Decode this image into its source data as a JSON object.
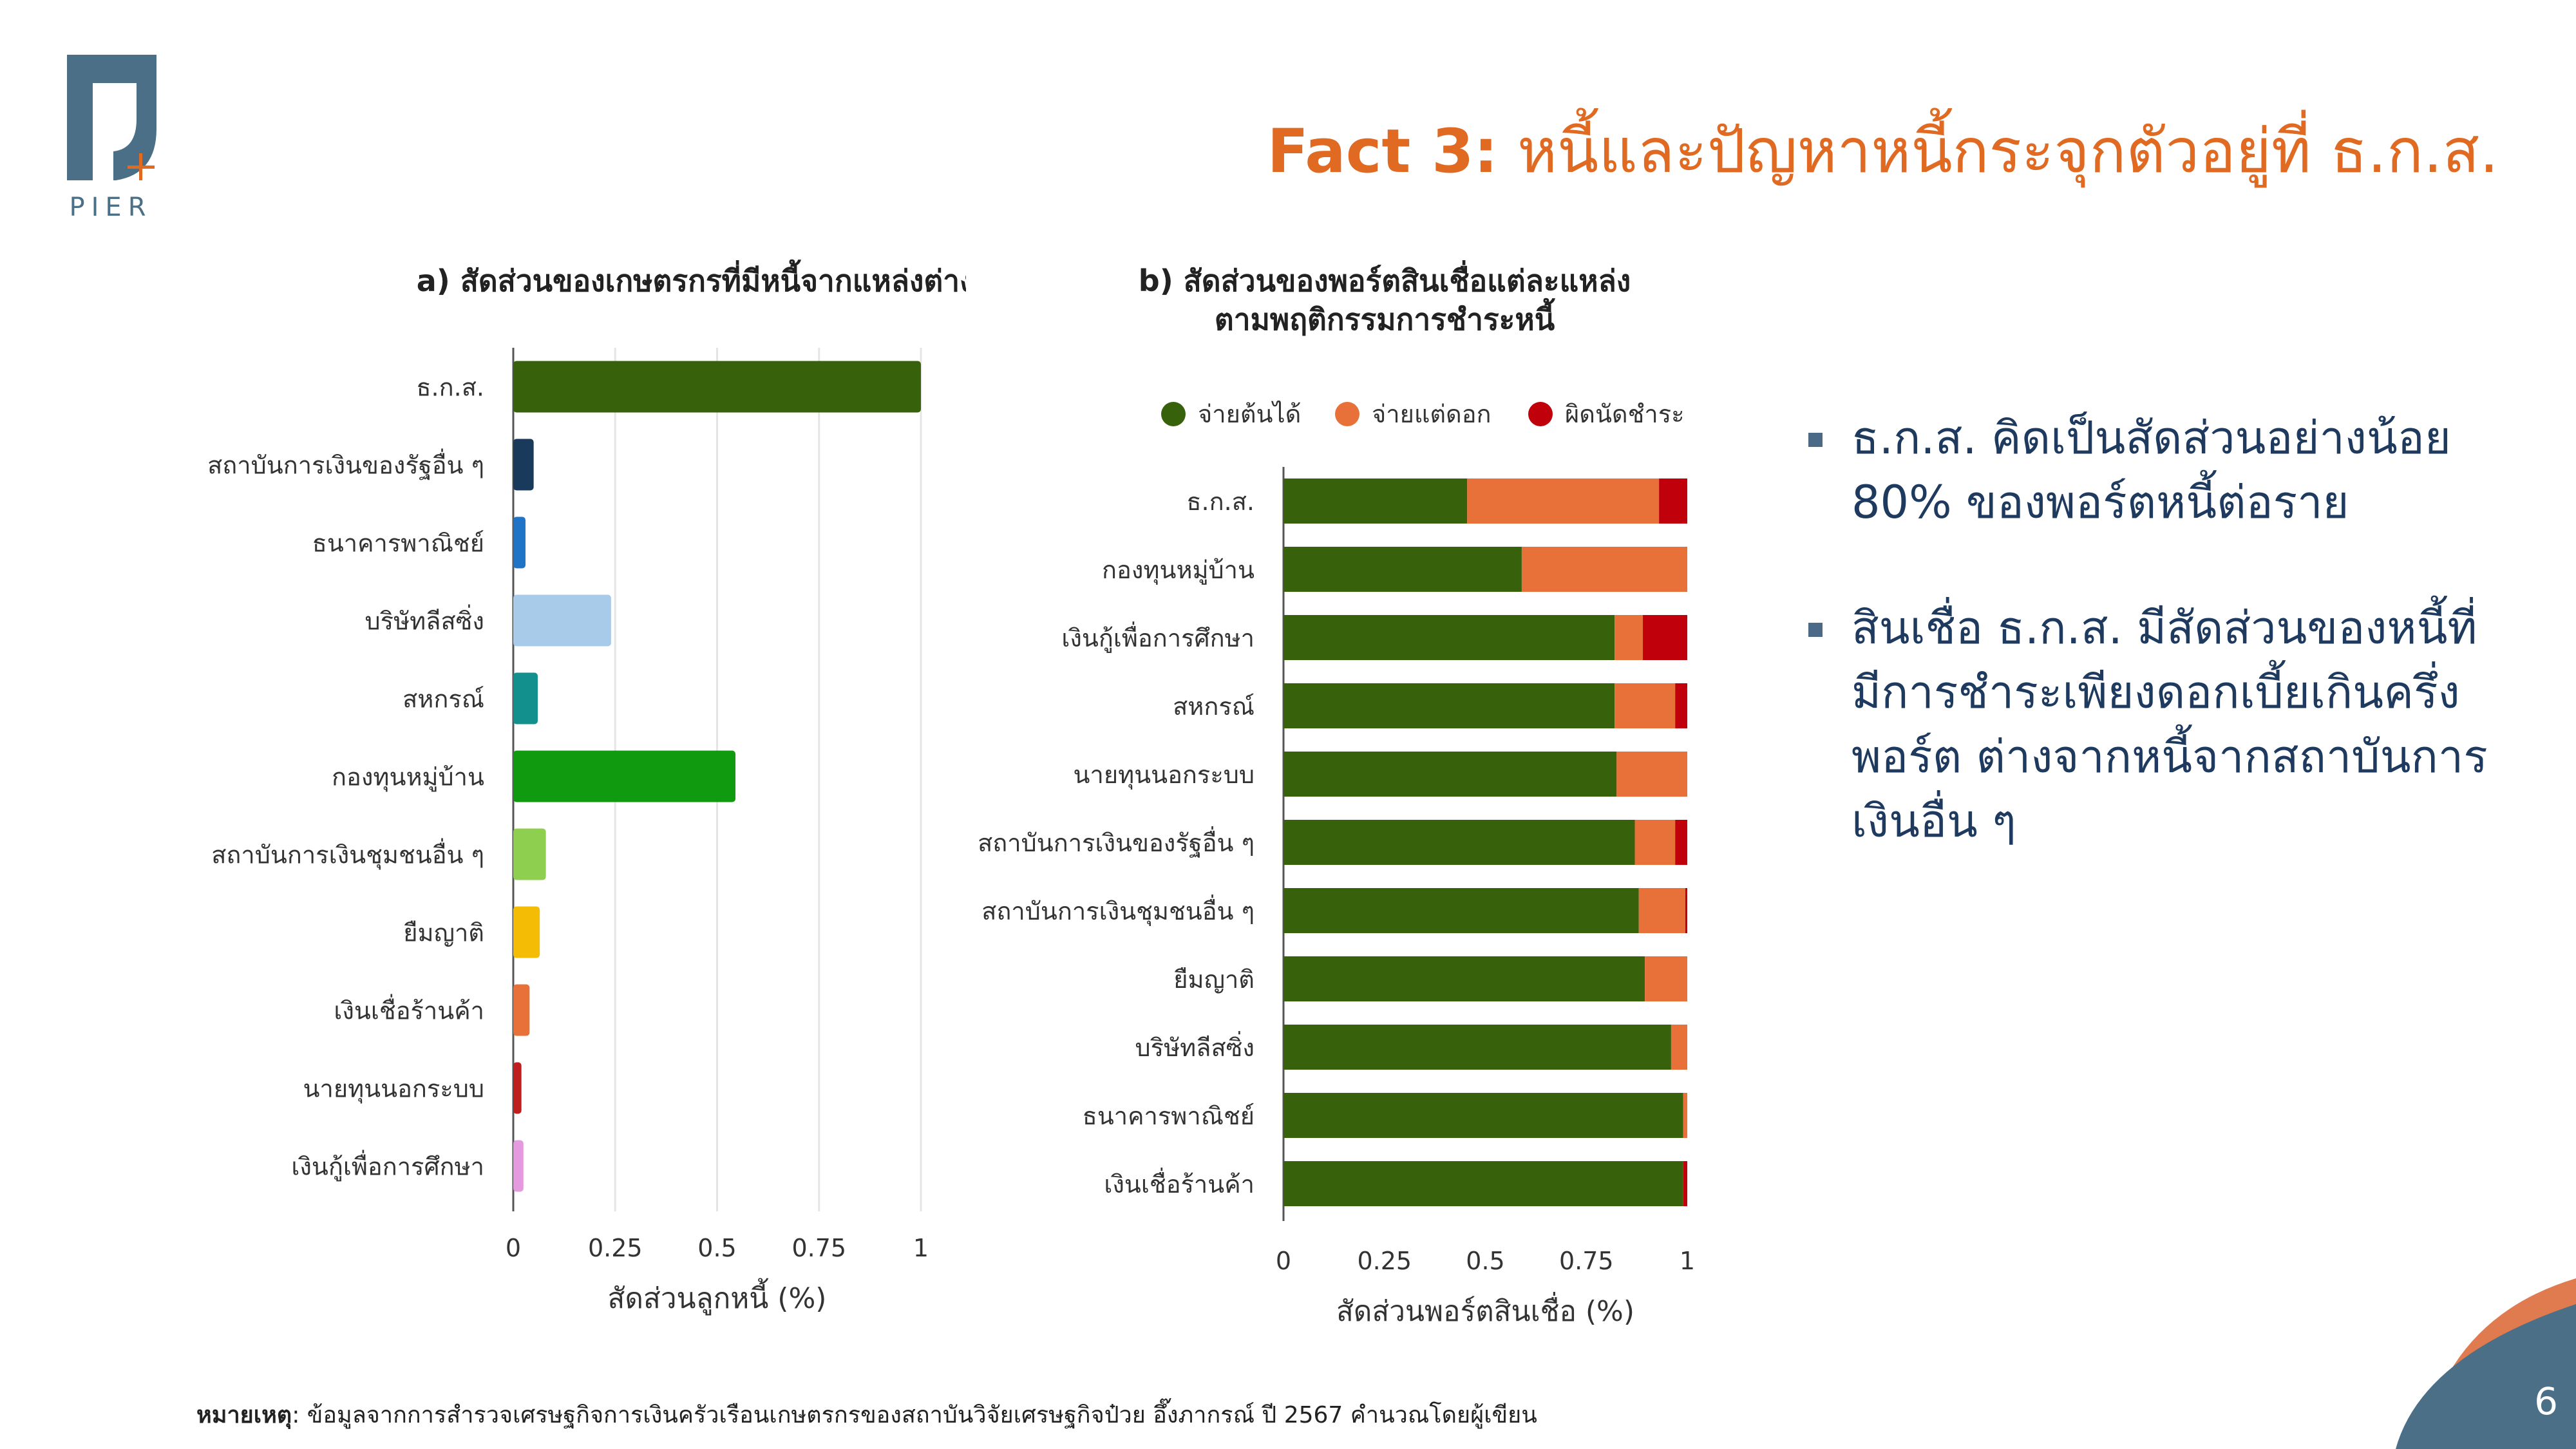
{
  "logo": {
    "text": "PIER",
    "icon": "pier-logo-icon",
    "color": "#4A6F86"
  },
  "title": {
    "prefix": "Fact 3:",
    "text": "หนี้และปัญหาหนี้กระจุกตัวอยู่ที่ ธ.ก.ส.",
    "color": "#E06A22"
  },
  "bullets": [
    "ธ.ก.ส. คิดเป็นสัดส่วนอย่างน้อย 80% ของพอร์ตหนี้ต่อราย",
    "สินเชื่อ ธ.ก.ส. มีสัดส่วนของหนี้ที่มีการชำระเพียงดอกเบี้ยเกินครึ่งพอร์ต ต่างจากหนี้จากสถาบันการเงินอื่น ๆ"
  ],
  "footnote": {
    "label": "หมายเหตุ",
    "text": ": ข้อมูลจากการสำรวจเศรษฐกิจการเงินครัวเรือนเกษตรกรของสถาบันวิจัยเศรษฐกิจป๋วย อึ๊งภากรณ์ ปี 2567 คำนวณโดยผู้เขียน"
  },
  "page_number": "6",
  "chart_data": [
    {
      "type": "bar",
      "orientation": "horizontal",
      "title": "a) สัดส่วนของเกษตรกรที่มีหนี้จากแหล่งต่าง ๆ",
      "xlabel": "สัดส่วนลูกหนี้ (%)",
      "ylabel": "",
      "xlim": [
        0,
        1
      ],
      "xticks": [
        "0",
        "0.25",
        "0.5",
        "0.75",
        "1"
      ],
      "grid": true,
      "categories": [
        "ธ.ก.ส.",
        "สถาบันการเงินของรัฐอื่น ๆ",
        "ธนาคารพาณิชย์",
        "บริษัทลีสซิ่ง",
        "สหกรณ์",
        "กองทุนหมู่บ้าน",
        "สถาบันการเงินชุมชนอื่น ๆ",
        "ยืมญาติ",
        "เงินเชื่อร้านค้า",
        "นายทุนนอกระบบ",
        "เงินกู้เพื่อการศึกษา"
      ],
      "values": [
        1.0,
        0.05,
        0.03,
        0.24,
        0.06,
        0.545,
        0.08,
        0.065,
        0.04,
        0.02,
        0.025
      ],
      "colors": [
        "#38610B",
        "#1A3A5C",
        "#1F74C7",
        "#A9CBEA",
        "#11908E",
        "#0F9A10",
        "#8FCF4F",
        "#F5BC06",
        "#E8713A",
        "#BE1E1E",
        "#E59AE0"
      ]
    },
    {
      "type": "bar",
      "orientation": "horizontal",
      "stacked": true,
      "title": "b) สัดส่วนของพอร์ตสินเชื่อแต่ละแหล่ง ตามพฤติกรรมการชำระหนี้",
      "xlabel": "สัดส่วนพอร์ตสินเชื่อ (%)",
      "ylabel": "",
      "xlim": [
        0,
        1
      ],
      "xticks": [
        "0",
        "0.25",
        "0.5",
        "0.75",
        "1"
      ],
      "grid": false,
      "legend_position": "top",
      "categories": [
        "ธ.ก.ส.",
        "กองทุนหมู่บ้าน",
        "เงินกู้เพื่อการศึกษา",
        "สหกรณ์",
        "นายทุนนอกระบบ",
        "สถาบันการเงินของรัฐอื่น ๆ",
        "สถาบันการเงินชุมชนอื่น ๆ",
        "ยืมญาติ",
        "บริษัทลีสซิ่ง",
        "ธนาคารพาณิชย์",
        "เงินเชื่อร้านค้า"
      ],
      "series": [
        {
          "name": "จ่ายต้นได้",
          "color": "#38610B",
          "values": [
            0.455,
            0.59,
            0.82,
            0.82,
            0.825,
            0.87,
            0.88,
            0.895,
            0.96,
            0.99,
            0.99
          ]
        },
        {
          "name": "จ่ายแต่ดอก",
          "color": "#E8713A",
          "values": [
            0.475,
            0.41,
            0.07,
            0.15,
            0.175,
            0.1,
            0.115,
            0.105,
            0.04,
            0.01,
            0.0
          ]
        },
        {
          "name": "ผิดนัดชำระ",
          "color": "#C0000B",
          "values": [
            0.07,
            0.0,
            0.11,
            0.03,
            0.0,
            0.03,
            0.005,
            0.0,
            0.0,
            0.0,
            0.01
          ]
        }
      ]
    }
  ]
}
